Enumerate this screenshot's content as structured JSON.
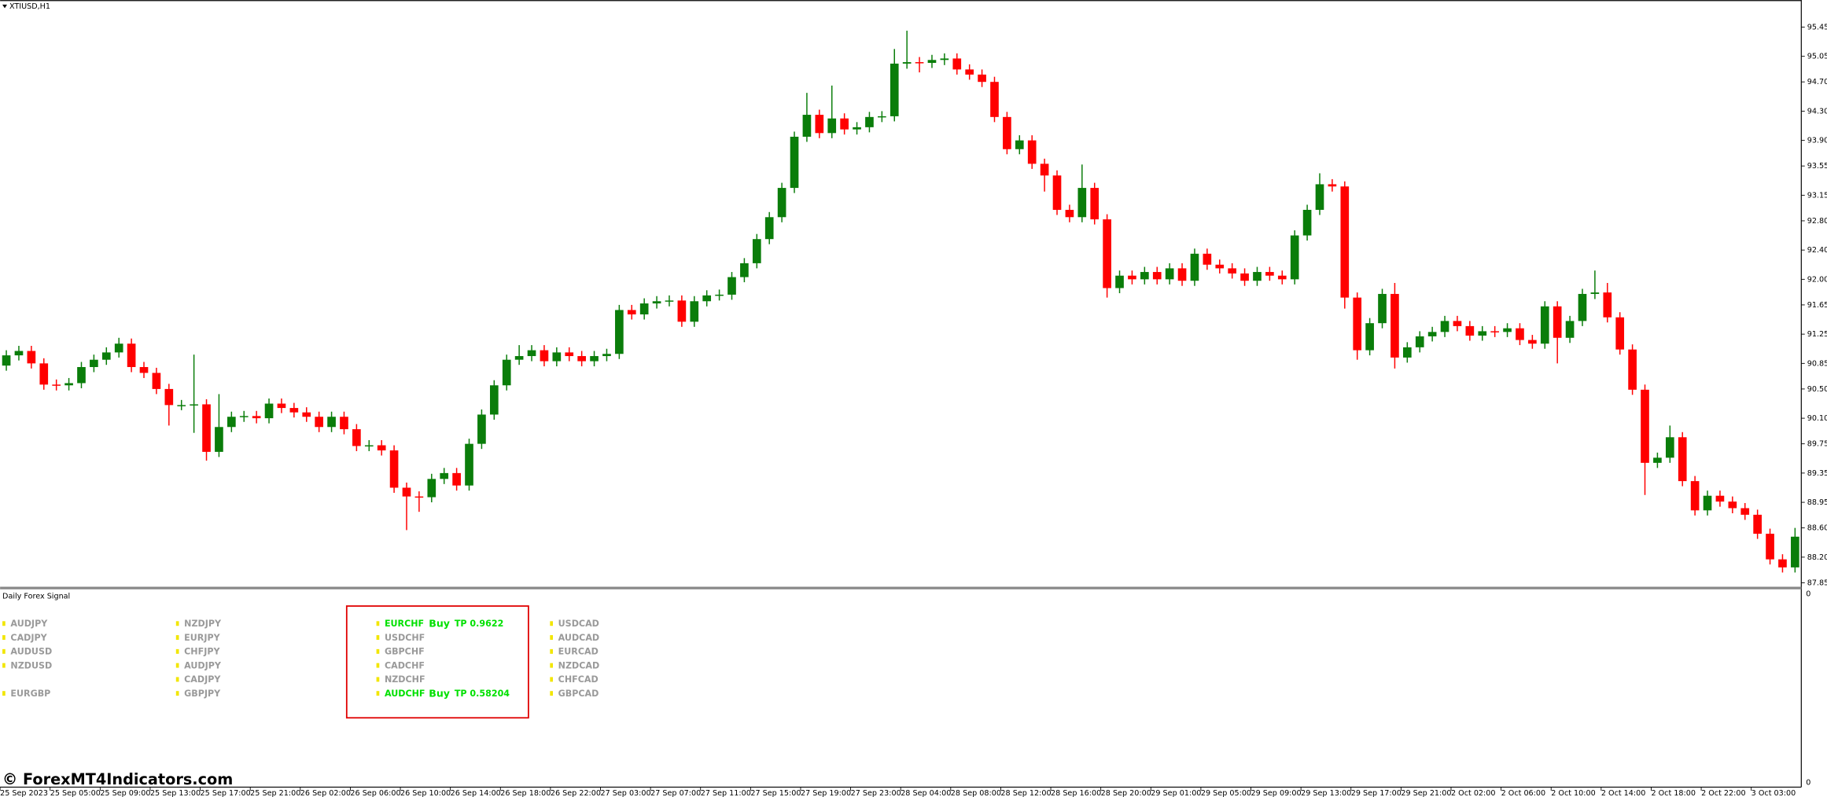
{
  "chart_data": {
    "type": "candlestick",
    "title": "XTIUSD,H1",
    "categories": [
      "25 Sep 2023",
      null,
      null,
      null,
      "25 Sep 05:00",
      null,
      null,
      null,
      "25 Sep 09:00",
      null,
      null,
      null,
      "25 Sep 13:00",
      null,
      null,
      null,
      "25 Sep 17:00",
      null,
      null,
      null,
      "25 Sep 21:00",
      null,
      null,
      null,
      "26 Sep 02:00",
      null,
      null,
      null,
      "26 Sep 06:00",
      null,
      null,
      null,
      "26 Sep 10:00",
      null,
      null,
      null,
      "26 Sep 14:00",
      null,
      null,
      null,
      "26 Sep 18:00",
      null,
      null,
      null,
      "26 Sep 22:00",
      null,
      null,
      null,
      "27 Sep 03:00",
      null,
      null,
      null,
      "27 Sep 07:00",
      null,
      null,
      null,
      "27 Sep 11:00",
      null,
      null,
      null,
      "27 Sep 15:00",
      null,
      null,
      null,
      "27 Sep 19:00",
      null,
      null,
      null,
      "27 Sep 23:00",
      null,
      null,
      null,
      "28 Sep 04:00",
      null,
      null,
      null,
      "28 Sep 08:00",
      null,
      null,
      null,
      "28 Sep 12:00",
      null,
      null,
      null,
      "28 Sep 16:00",
      null,
      null,
      null,
      "28 Sep 20:00",
      null,
      null,
      null,
      "29 Sep 01:00",
      null,
      null,
      null,
      "29 Sep 05:00",
      null,
      null,
      null,
      "29 Sep 09:00",
      null,
      null,
      null,
      "29 Sep 13:00",
      null,
      null,
      null,
      "29 Sep 17:00",
      null,
      null,
      null,
      "29 Sep 21:00",
      null,
      null,
      null,
      "2 Oct 02:00",
      null,
      null,
      null,
      "2 Oct 06:00",
      null,
      null,
      null,
      "2 Oct 10:00",
      null,
      null,
      null,
      "2 Oct 14:00",
      null,
      null,
      null,
      "2 Oct 18:00",
      null,
      null,
      null,
      "2 Oct 22:00",
      null,
      null,
      null,
      "3 Oct 03:00",
      null,
      null,
      null
    ],
    "open": [
      90.82,
      90.96,
      91.02,
      90.85,
      90.56,
      90.55,
      90.58,
      90.8,
      90.9,
      91.0,
      91.12,
      90.8,
      90.72,
      90.5,
      90.28,
      90.28,
      90.29,
      89.64,
      89.98,
      90.12,
      90.13,
      90.1,
      90.3,
      90.24,
      90.18,
      90.12,
      89.98,
      90.12,
      89.95,
      89.72,
      89.73,
      89.66,
      89.15,
      89.03,
      89.02,
      89.27,
      89.35,
      89.18,
      89.75,
      90.15,
      90.55,
      90.9,
      90.95,
      91.03,
      90.88,
      91.0,
      90.95,
      90.88,
      90.95,
      90.98,
      91.58,
      91.52,
      91.67,
      91.7,
      91.71,
      91.42,
      91.7,
      91.78,
      91.79,
      92.03,
      92.22,
      92.55,
      92.85,
      93.25,
      93.95,
      94.25,
      94.0,
      94.2,
      94.05,
      94.08,
      94.22,
      94.23,
      94.95,
      94.97,
      94.96,
      95.0,
      95.02,
      94.87,
      94.8,
      94.7,
      94.22,
      93.78,
      93.9,
      93.58,
      93.42,
      92.95,
      92.85,
      93.25,
      92.82,
      91.88,
      92.05,
      92.0,
      92.1,
      92.0,
      92.15,
      91.98,
      92.35,
      92.2,
      92.15,
      92.08,
      91.98,
      92.1,
      92.05,
      92.0,
      92.6,
      92.95,
      93.3,
      93.27,
      91.75,
      91.03,
      91.4,
      91.8,
      90.93,
      91.07,
      91.22,
      91.28,
      91.43,
      91.36,
      91.23,
      91.29,
      91.28,
      91.33,
      91.17,
      91.12,
      91.63,
      91.2,
      91.43,
      91.8,
      91.82,
      91.48,
      91.04,
      90.49,
      89.49,
      89.56,
      89.84,
      89.24,
      88.84,
      89.04,
      88.96,
      88.87,
      88.78,
      88.52,
      88.17,
      88.06
    ],
    "high": [
      91.03,
      91.09,
      91.09,
      90.92,
      90.63,
      90.65,
      90.87,
      90.97,
      91.07,
      91.2,
      91.19,
      90.87,
      90.79,
      90.57,
      90.35,
      90.97,
      90.36,
      90.43,
      90.19,
      90.2,
      90.2,
      90.37,
      90.37,
      90.31,
      90.25,
      90.19,
      90.19,
      90.19,
      90.02,
      89.8,
      89.8,
      89.73,
      89.22,
      89.1,
      89.34,
      89.42,
      89.42,
      89.82,
      90.22,
      90.62,
      90.97,
      91.1,
      91.1,
      91.1,
      91.07,
      91.07,
      91.02,
      91.02,
      91.05,
      91.65,
      91.65,
      91.74,
      91.77,
      91.78,
      91.78,
      91.77,
      91.85,
      91.86,
      92.1,
      92.29,
      92.62,
      92.92,
      93.32,
      94.02,
      94.55,
      94.32,
      94.65,
      94.27,
      94.15,
      94.29,
      94.3,
      95.15,
      95.4,
      95.04,
      95.07,
      95.09,
      95.09,
      94.94,
      94.87,
      94.77,
      94.29,
      93.97,
      93.97,
      93.65,
      93.49,
      93.02,
      93.57,
      93.32,
      92.89,
      92.12,
      92.12,
      92.17,
      92.17,
      92.22,
      92.22,
      92.42,
      92.42,
      92.27,
      92.22,
      92.15,
      92.17,
      92.17,
      92.12,
      92.67,
      93.02,
      93.45,
      93.37,
      93.34,
      91.82,
      91.47,
      91.87,
      91.95,
      91.14,
      91.29,
      91.35,
      91.5,
      91.5,
      91.43,
      91.36,
      91.36,
      91.4,
      91.4,
      91.24,
      91.7,
      91.7,
      91.5,
      91.87,
      92.12,
      91.95,
      91.55,
      91.11,
      90.56,
      89.63,
      90.0,
      89.91,
      89.31,
      89.11,
      89.11,
      89.03,
      88.94,
      88.85,
      88.59,
      88.24,
      88.6
    ],
    "low": [
      90.75,
      90.89,
      90.78,
      90.49,
      90.48,
      90.48,
      90.51,
      90.73,
      90.83,
      90.93,
      90.73,
      90.65,
      90.43,
      90.0,
      90.21,
      89.9,
      89.52,
      89.57,
      89.91,
      90.05,
      90.03,
      90.03,
      90.17,
      90.11,
      90.05,
      89.91,
      89.91,
      89.88,
      89.65,
      89.65,
      89.59,
      89.08,
      88.57,
      88.82,
      88.95,
      89.2,
      89.11,
      89.11,
      89.68,
      90.08,
      90.48,
      90.83,
      90.88,
      90.81,
      90.81,
      90.88,
      90.81,
      90.81,
      90.88,
      90.91,
      91.45,
      91.45,
      91.6,
      91.63,
      91.35,
      91.35,
      91.63,
      91.71,
      91.72,
      91.96,
      92.15,
      92.48,
      92.78,
      93.18,
      93.88,
      93.93,
      93.93,
      93.98,
      93.98,
      94.01,
      94.15,
      94.16,
      94.88,
      94.83,
      94.89,
      94.93,
      94.8,
      94.73,
      94.63,
      94.15,
      93.71,
      93.71,
      93.51,
      93.2,
      92.88,
      92.78,
      92.78,
      92.75,
      91.75,
      91.81,
      91.93,
      91.93,
      91.93,
      91.93,
      91.91,
      91.91,
      92.13,
      92.08,
      92.01,
      91.91,
      91.91,
      91.98,
      91.93,
      91.93,
      92.53,
      92.88,
      93.2,
      91.6,
      90.9,
      90.96,
      91.33,
      90.78,
      90.86,
      91.0,
      91.15,
      91.21,
      91.29,
      91.16,
      91.16,
      91.21,
      91.21,
      91.1,
      91.05,
      91.05,
      90.85,
      91.13,
      91.36,
      91.73,
      91.41,
      90.97,
      90.42,
      89.05,
      89.42,
      89.49,
      89.17,
      88.77,
      88.77,
      88.89,
      88.8,
      88.71,
      88.45,
      88.1,
      87.99,
      87.99
    ],
    "close": [
      90.96,
      91.02,
      90.85,
      90.56,
      90.55,
      90.58,
      90.8,
      90.9,
      91.0,
      91.12,
      90.8,
      90.72,
      90.5,
      90.28,
      90.28,
      90.29,
      89.64,
      89.98,
      90.12,
      90.13,
      90.1,
      90.3,
      90.24,
      90.18,
      90.12,
      89.98,
      90.12,
      89.95,
      89.72,
      89.73,
      89.66,
      89.15,
      89.03,
      89.02,
      89.27,
      89.35,
      89.18,
      89.75,
      90.15,
      90.55,
      90.9,
      90.95,
      91.03,
      90.88,
      91.0,
      90.95,
      90.88,
      90.95,
      90.98,
      91.58,
      91.52,
      91.67,
      91.7,
      91.71,
      91.42,
      91.7,
      91.78,
      91.79,
      92.03,
      92.22,
      92.55,
      92.85,
      93.25,
      93.95,
      94.25,
      94.0,
      94.2,
      94.05,
      94.08,
      94.22,
      94.23,
      94.95,
      94.97,
      94.96,
      95.0,
      95.02,
      94.87,
      94.8,
      94.7,
      94.22,
      93.78,
      93.9,
      93.58,
      93.42,
      92.95,
      92.85,
      93.25,
      92.82,
      91.88,
      92.05,
      92.0,
      92.1,
      92.0,
      92.15,
      91.98,
      92.35,
      92.2,
      92.15,
      92.08,
      91.98,
      92.1,
      92.05,
      92.0,
      92.6,
      92.95,
      93.3,
      93.27,
      91.75,
      91.03,
      91.4,
      91.8,
      90.93,
      91.07,
      91.22,
      91.28,
      91.43,
      91.36,
      91.23,
      91.29,
      91.28,
      91.33,
      91.17,
      91.12,
      91.63,
      91.2,
      91.43,
      91.8,
      91.82,
      91.48,
      91.04,
      90.49,
      89.49,
      89.56,
      89.84,
      89.24,
      88.84,
      89.04,
      88.96,
      88.87,
      88.78,
      88.52,
      88.17,
      88.06,
      88.48
    ],
    "up_color": "#0a7d0a",
    "down_color": "#ff0000",
    "ylim": [
      87.81,
      95.82
    ],
    "yticks": [
      95.45,
      95.05,
      {
        "value": 94.7,
        "label": "94.70"
      },
      {
        "value": 94.3,
        "label": "94.30"
      },
      {
        "value": 93.9,
        "label": "93.90"
      },
      93.55,
      93.15,
      {
        "value": 92.8,
        "label": "92.80"
      },
      {
        "value": 92.4,
        "label": "92.40"
      },
      {
        "value": 92,
        "label": "92.00"
      },
      91.65,
      91.25,
      90.85,
      {
        "value": 90.5,
        "label": "90.50"
      },
      {
        "value": 90.1,
        "label": "90.10"
      },
      89.75,
      89.35,
      88.95,
      {
        "value": 88.6,
        "label": "88.60"
      },
      {
        "value": 88.2,
        "label": "88.20"
      },
      87.85
    ],
    "grid": false
  },
  "indicator": {
    "title": "Daily Forex Signal",
    "scale": [
      "0",
      "0"
    ],
    "columns": [
      [
        {
          "pair": "AUDJPY"
        },
        {
          "pair": "CADJPY"
        },
        {
          "pair": "AUDUSD"
        },
        {
          "pair": "NZDUSD"
        },
        null,
        {
          "pair": "EURGBP"
        }
      ],
      [
        {
          "pair": "NZDJPY"
        },
        {
          "pair": "EURJPY"
        },
        {
          "pair": "CHFJPY"
        },
        {
          "pair": "AUDJPY"
        },
        {
          "pair": "CADJPY"
        },
        {
          "pair": "GBPJPY"
        }
      ],
      [
        {
          "pair": "EURCHF",
          "signal": "Buy",
          "tp": "TP 0.9622"
        },
        {
          "pair": "USDCHF"
        },
        {
          "pair": "GBPCHF"
        },
        {
          "pair": "CADCHF"
        },
        {
          "pair": "NZDCHF"
        },
        {
          "pair": "AUDCHF",
          "signal": "Buy",
          "tp": "TP 0.58204"
        }
      ],
      [
        {
          "pair": "USDCAD"
        },
        {
          "pair": "AUDCAD"
        },
        {
          "pair": "EURCAD"
        },
        {
          "pair": "NZDCAD"
        },
        {
          "pair": "CHFCAD"
        },
        {
          "pair": "GBPCAD"
        }
      ]
    ]
  },
  "watermark": "© ForexMT4Indicators.com"
}
